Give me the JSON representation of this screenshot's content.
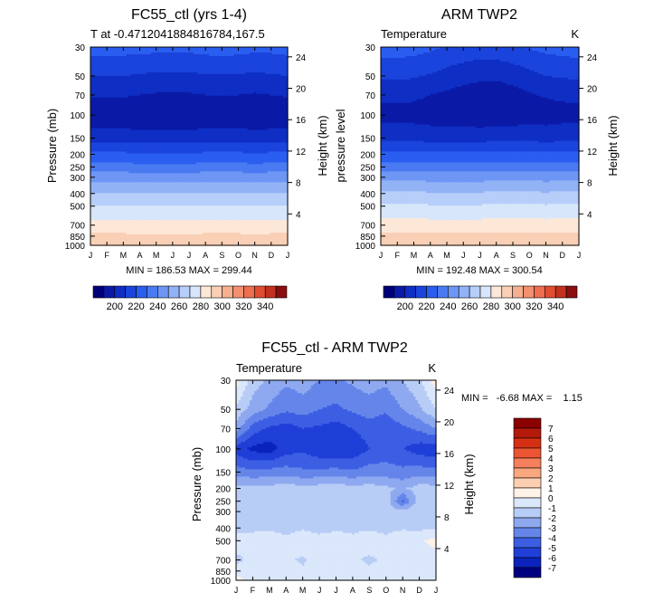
{
  "chart_data": [
    {
      "type": "heatmap",
      "title": "FC55_ctl (yrs 1-4)",
      "subtitle_left": "T at -0.4712041884816784,167.5",
      "subtitle_right": "",
      "ylabel": "Pressure (mb)",
      "y2label": "Height (km)",
      "x_ticks": [
        "J",
        "F",
        "M",
        "A",
        "M",
        "J",
        "J",
        "A",
        "S",
        "O",
        "N",
        "D",
        "J"
      ],
      "y_ticks": [
        "30",
        "50",
        "70",
        "100",
        "150",
        "200",
        "250",
        "300",
        "400",
        "500",
        "700",
        "850",
        "1000"
      ],
      "y2_ticks": [
        "24",
        "20",
        "16",
        "12",
        "8",
        "4"
      ],
      "stats": "MIN = 186.53 MAX = 299.44",
      "units": "K",
      "field": {
        "months": [
          1,
          2,
          3,
          4,
          5,
          6,
          7,
          8,
          9,
          10,
          11,
          12,
          13
        ],
        "levels_mb": [
          30,
          50,
          70,
          100,
          150,
          200,
          250,
          300,
          400,
          500,
          700,
          850,
          1000
        ],
        "values": [
          [
            224,
            224,
            224,
            224,
            223,
            223,
            223,
            224,
            225,
            224,
            223,
            223,
            224
          ],
          [
            210,
            210,
            210,
            209,
            208,
            208,
            208,
            209,
            209,
            209,
            208,
            209,
            210
          ],
          [
            201,
            201,
            201,
            200,
            199,
            199,
            199,
            200,
            200,
            200,
            199,
            200,
            201
          ],
          [
            192,
            192,
            192,
            191,
            191,
            191,
            191,
            192,
            192,
            192,
            191,
            191,
            192
          ],
          [
            206,
            206,
            206,
            205,
            205,
            205,
            205,
            206,
            206,
            206,
            205,
            206,
            206
          ],
          [
            222,
            222,
            222,
            221,
            221,
            221,
            221,
            222,
            222,
            222,
            221,
            222,
            222
          ],
          [
            234,
            234,
            234,
            233,
            233,
            233,
            233,
            234,
            234,
            234,
            233,
            234,
            234
          ],
          [
            246,
            246,
            246,
            245,
            245,
            245,
            245,
            246,
            246,
            246,
            245,
            246,
            246
          ],
          [
            261,
            261,
            261,
            260,
            260,
            260,
            260,
            261,
            261,
            261,
            260,
            261,
            261
          ],
          [
            271,
            271,
            271,
            270,
            270,
            270,
            270,
            271,
            271,
            271,
            270,
            271,
            271
          ],
          [
            284,
            284,
            284,
            283,
            283,
            283,
            283,
            284,
            284,
            284,
            283,
            284,
            284
          ],
          [
            292,
            292,
            292,
            291,
            291,
            291,
            291,
            292,
            292,
            292,
            291,
            292,
            292
          ],
          [
            298,
            298,
            298,
            297,
            297,
            297,
            297,
            298,
            298,
            298,
            297,
            298,
            298
          ]
        ]
      },
      "colorbar_labels": [
        "200",
        "220",
        "240",
        "260",
        "280",
        "300",
        "320",
        "340"
      ]
    },
    {
      "type": "heatmap",
      "title": "ARM TWP2",
      "subtitle_left": "Temperature",
      "subtitle_right": "K",
      "ylabel": "pressure level",
      "y2label": "Height (km)",
      "x_ticks": [
        "J",
        "F",
        "M",
        "A",
        "M",
        "J",
        "J",
        "A",
        "S",
        "O",
        "N",
        "D",
        "J"
      ],
      "y_ticks": [
        "30",
        "50",
        "70",
        "100",
        "150",
        "200",
        "250",
        "300",
        "400",
        "500",
        "700",
        "850",
        "1000"
      ],
      "y2_ticks": [
        "24",
        "20",
        "16",
        "12",
        "8",
        "4"
      ],
      "stats": "MIN = 192.48 MAX = 300.54",
      "units": "K",
      "field": {
        "months": [
          1,
          2,
          3,
          4,
          5,
          6,
          7,
          8,
          9,
          10,
          11,
          12,
          13
        ],
        "levels_mb": [
          30,
          50,
          70,
          100,
          150,
          200,
          250,
          300,
          400,
          500,
          700,
          850,
          1000
        ],
        "values": [
          [
            225,
            225,
            224,
            222,
            219,
            217,
            216,
            216,
            218,
            221,
            223,
            224,
            225
          ],
          [
            212,
            212,
            211,
            209,
            206,
            204,
            202,
            202,
            204,
            207,
            210,
            211,
            212
          ],
          [
            203,
            203,
            202,
            200,
            198,
            196,
            195,
            194,
            196,
            199,
            201,
            202,
            203
          ],
          [
            196,
            196,
            196,
            195,
            194,
            194,
            193,
            193,
            194,
            195,
            195,
            196,
            196
          ],
          [
            207,
            207,
            207,
            206,
            206,
            206,
            206,
            207,
            207,
            207,
            206,
            207,
            207
          ],
          [
            223,
            223,
            223,
            222,
            222,
            222,
            222,
            223,
            223,
            223,
            222,
            223,
            223
          ],
          [
            235,
            235,
            235,
            234,
            234,
            234,
            234,
            235,
            235,
            235,
            234,
            235,
            235
          ],
          [
            247,
            247,
            247,
            246,
            246,
            246,
            246,
            247,
            247,
            247,
            246,
            247,
            247
          ],
          [
            262,
            262,
            262,
            261,
            261,
            261,
            261,
            262,
            262,
            262,
            261,
            262,
            262
          ],
          [
            272,
            272,
            272,
            271,
            271,
            271,
            271,
            272,
            272,
            272,
            271,
            272,
            272
          ],
          [
            285,
            285,
            285,
            284,
            284,
            284,
            284,
            285,
            285,
            285,
            284,
            285,
            285
          ],
          [
            293,
            293,
            293,
            292,
            292,
            292,
            292,
            293,
            293,
            293,
            292,
            293,
            293
          ],
          [
            299,
            299,
            299,
            298,
            298,
            298,
            298,
            299,
            299,
            299,
            298,
            299,
            299
          ]
        ]
      },
      "colorbar_labels": [
        "200",
        "220",
        "240",
        "260",
        "280",
        "300",
        "320",
        "340"
      ]
    },
    {
      "type": "heatmap",
      "title": "FC55_ctl - ARM TWP2",
      "subtitle_left": "Temperature",
      "subtitle_right": "K",
      "ylabel": "Pressure (mb)",
      "y2label": "Height (km)",
      "x_ticks": [
        "J",
        "F",
        "M",
        "A",
        "M",
        "J",
        "J",
        "A",
        "S",
        "O",
        "N",
        "D",
        "J"
      ],
      "y_ticks": [
        "30",
        "50",
        "70",
        "100",
        "150",
        "200",
        "250",
        "300",
        "400",
        "500",
        "700",
        "850",
        "1000"
      ],
      "y2_ticks": [
        "24",
        "20",
        "16",
        "12",
        "8",
        "4"
      ],
      "stats": "MIN =   -6.68 MAX =    1.15",
      "units": "K",
      "field": {
        "months": [
          1,
          2,
          3,
          4,
          5,
          6,
          7,
          8,
          9,
          10,
          11,
          12,
          13
        ],
        "levels_mb": [
          30,
          50,
          70,
          100,
          150,
          200,
          250,
          300,
          400,
          500,
          700,
          850,
          1000
        ],
        "values": [
          [
            0.4,
            -1.5,
            -2.2,
            -2.8,
            -2.5,
            -3.0,
            -3.2,
            -2.8,
            -2.5,
            -2.8,
            -2.0,
            -1.2,
            0.5
          ],
          [
            -1.2,
            -2.5,
            -3.2,
            -3.8,
            -3.5,
            -4.0,
            -4.2,
            -3.8,
            -3.5,
            -3.8,
            -3.0,
            -2.2,
            -1.0
          ],
          [
            -2.5,
            -4.5,
            -5.2,
            -5.5,
            -5.0,
            -5.2,
            -5.5,
            -5.0,
            -4.5,
            -4.8,
            -4.2,
            -3.8,
            -3.0
          ],
          [
            -5.5,
            -6.3,
            -6.5,
            -5.5,
            -5.2,
            -5.8,
            -6.0,
            -5.8,
            -5.0,
            -4.5,
            -5.0,
            -5.5,
            -5.8
          ],
          [
            -3.5,
            -3.8,
            -3.6,
            -3.5,
            -3.8,
            -3.7,
            -3.6,
            -3.8,
            -3.5,
            -3.6,
            -3.7,
            -3.5,
            -3.6
          ],
          [
            -1.6,
            -1.5,
            -1.6,
            -1.4,
            -1.6,
            -1.5,
            -1.4,
            -1.6,
            -1.5,
            -1.7,
            -2.2,
            -1.5,
            -1.6
          ],
          [
            -1.4,
            -1.5,
            -1.3,
            -1.4,
            -1.5,
            -1.3,
            -1.4,
            -1.5,
            -1.3,
            -1.4,
            -4.2,
            -1.4,
            -1.3
          ],
          [
            -1.3,
            -1.2,
            -1.4,
            -1.3,
            -1.2,
            -1.4,
            -1.3,
            -1.2,
            -1.3,
            -1.4,
            -1.6,
            -1.3,
            -1.2
          ],
          [
            -1.2,
            -1.1,
            -1.2,
            -1.2,
            -1.1,
            -1.2,
            -1.2,
            -1.1,
            -1.2,
            -1.2,
            -1.1,
            -1.2,
            -1.1
          ],
          [
            -0.6,
            -0.8,
            -0.4,
            -0.9,
            -0.5,
            -0.8,
            -0.5,
            -0.9,
            -0.4,
            -0.8,
            -0.5,
            -0.2,
            0.4
          ],
          [
            -1.2,
            -0.8,
            -0.5,
            -0.9,
            -1.1,
            -0.7,
            -0.6,
            -0.8,
            -1.2,
            -0.8,
            -0.5,
            -0.7,
            -0.6
          ],
          [
            -0.7,
            -0.6,
            -0.8,
            -0.5,
            -0.9,
            -0.6,
            -0.7,
            -0.6,
            -0.8,
            -0.5,
            -0.6,
            -0.7,
            -0.6
          ],
          [
            0.5,
            -0.4,
            -0.6,
            -0.5,
            -0.4,
            -0.6,
            -0.5,
            -0.4,
            -0.6,
            -0.5,
            -0.4,
            -0.6,
            -0.4
          ]
        ]
      },
      "colorbar_labels": [
        "7",
        "6",
        "5",
        "4",
        "3",
        "2",
        "1",
        "0",
        "-1",
        "-2",
        "-3",
        "-4",
        "-5",
        "-6",
        "-7"
      ]
    }
  ],
  "colors": {
    "temperature_scale": [
      "#00007a",
      "#0b1aa6",
      "#0f2ec4",
      "#1a44dc",
      "#2a5ef0",
      "#4a7af2",
      "#6e96f4",
      "#92b2f6",
      "#b6cef9",
      "#d8e6fb",
      "#fde8d8",
      "#f9cfb5",
      "#f6b08f",
      "#f39070",
      "#ee6e4e",
      "#e04e32",
      "#c23020",
      "#8b0e0e"
    ],
    "difference_scale": [
      "#8b0000",
      "#b31a0a",
      "#d63014",
      "#ec5533",
      "#f5805c",
      "#f9a77f",
      "#fccfb0",
      "#fff2e6",
      "#dbe7fb",
      "#b8cdf6",
      "#8ea9f0",
      "#6585ea",
      "#3c5ee3",
      "#1f3fd7",
      "#0b22bd",
      "#000080"
    ]
  }
}
